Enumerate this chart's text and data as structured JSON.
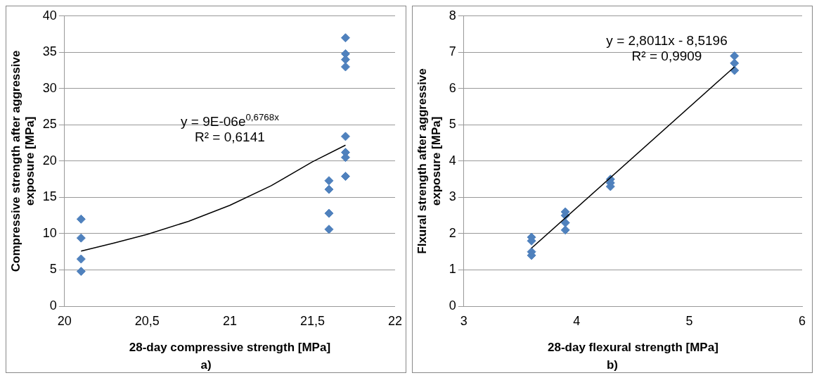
{
  "chart_data": [
    {
      "type": "scatter",
      "xlabel": "28-day compressive strength [MPa]",
      "ylabel": "Compressive strength after aggressive exposure [MPa]",
      "xlim": [
        20,
        22
      ],
      "xticks": [
        20,
        {
          "value": 20.5,
          "label": "20,5"
        },
        21,
        {
          "value": 21.5,
          "label": "21,5"
        },
        22
      ],
      "ylim": [
        0,
        40
      ],
      "yticks": [
        0,
        5,
        10,
        15,
        20,
        25,
        30,
        35,
        40
      ],
      "grid": "y",
      "legend": false,
      "series": [
        {
          "marker": "diamond",
          "color": "#4f81bd",
          "x": [
            20.1,
            20.1,
            20.1,
            20.1,
            21.6,
            21.6,
            21.6,
            21.6,
            21.7,
            21.7,
            21.7,
            21.7,
            21.7,
            21.7,
            21.7,
            21.7
          ],
          "values": [
            12,
            9.4,
            6.5,
            4.8,
            17.3,
            16.1,
            12.8,
            10.6,
            37,
            34.8,
            34,
            33,
            23.4,
            21.2,
            20.5,
            17.9
          ]
        },
        {
          "type": "line",
          "marker": "none",
          "color": "#000000",
          "x": [
            20.1,
            20.3,
            20.5,
            20.75,
            21,
            21.25,
            21.5,
            21.7
          ],
          "values": [
            7.6,
            8.7,
            9.9,
            11.7,
            13.9,
            16.6,
            19.9,
            22.2
          ]
        }
      ],
      "annotations": [
        "y = 9E-06e$^{0,6768x}$",
        "R² = 0,6141",
        "a)"
      ]
    },
    {
      "type": "scatter",
      "xlabel": "28-day flexural strength [MPa]",
      "ylabel": "Flxural strength after aggressive exposure [MPa]",
      "xlim": [
        3,
        6
      ],
      "xticks": [
        3,
        4,
        5,
        6
      ],
      "ylim": [
        0,
        8
      ],
      "yticks": [
        0,
        1,
        2,
        3,
        4,
        5,
        6,
        7,
        8
      ],
      "grid": "y",
      "legend": false,
      "series": [
        {
          "marker": "diamond",
          "color": "#4f81bd",
          "x": [
            3.6,
            3.6,
            3.6,
            3.6,
            3.9,
            3.9,
            3.9,
            3.9,
            4.3,
            4.3,
            4.3,
            5.4,
            5.4,
            5.4
          ],
          "values": [
            1.9,
            1.8,
            1.5,
            1.4,
            2.6,
            2.5,
            2.3,
            2.1,
            3.5,
            3.4,
            3.3,
            6.9,
            6.7,
            6.5
          ]
        },
        {
          "type": "line",
          "marker": "none",
          "color": "#000000",
          "x": [
            3.6,
            5.4
          ],
          "values": [
            1.6,
            6.6
          ]
        }
      ],
      "annotations": [
        "y = 2,8011x - 8,5196",
        "R² = 0,9909",
        "b)"
      ]
    }
  ]
}
